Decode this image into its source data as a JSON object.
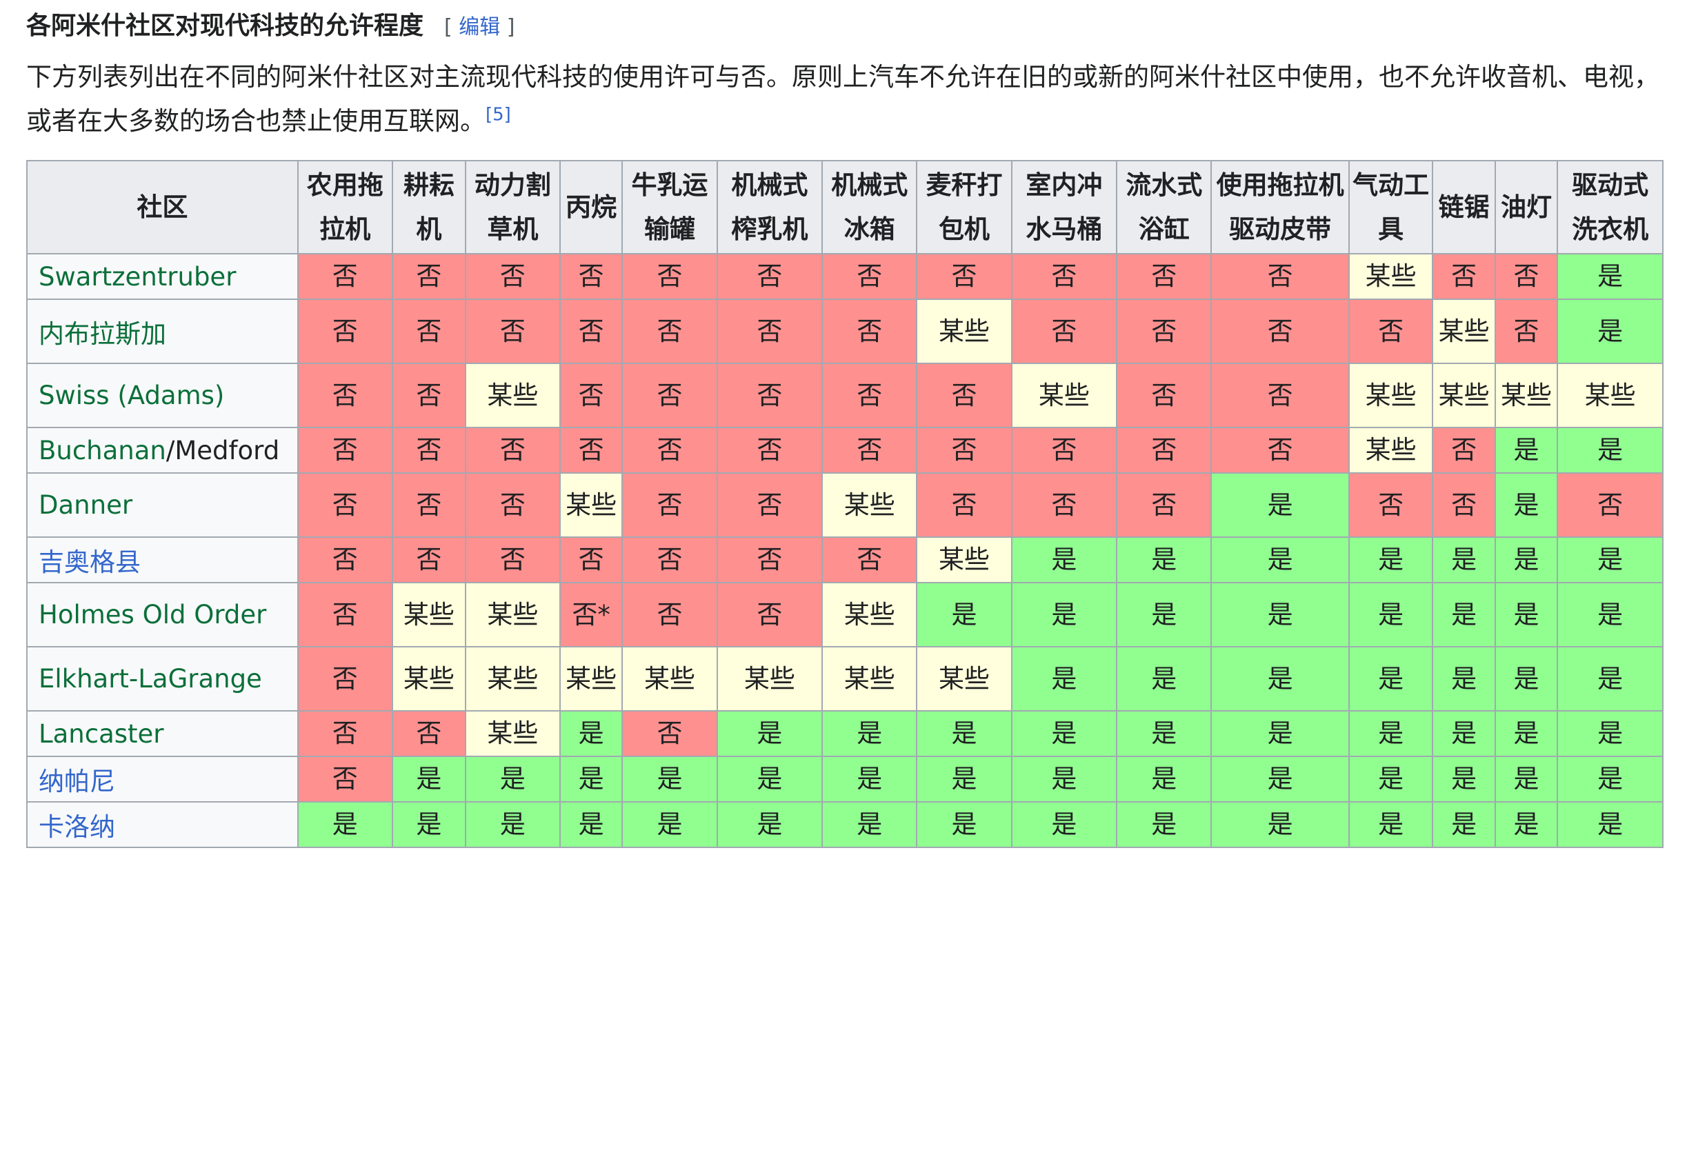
{
  "section": {
    "title": "各阿米什社区对现代科技的允许程度",
    "edit_open": "[ ",
    "edit_label": "编辑",
    "edit_close": " ]"
  },
  "intro": {
    "text": "下方列表列出在不同的阿米什社区对主流现代科技的使用许可与否。原则上汽车不允许在旧的或新的阿米什社区中使用，也不允许收音机、电视，或者在大多数的场合也禁止使用互联网。",
    "citation": "[5]"
  },
  "table": {
    "corner_header": "社区",
    "columns": [
      "农用拖拉机",
      "耕耘机",
      "动力割草机",
      "丙烷",
      "牛乳运输罐",
      "机械式榨乳机",
      "机械式冰箱",
      "麦秆打包机",
      "室内冲水马桶",
      "流水式浴缸",
      "使用拖拉机驱动皮带",
      "气动工具",
      "链锯",
      "油灯",
      "驱动式洗衣机"
    ],
    "rows": [
      {
        "name": [
          "Swartzentruber"
        ],
        "cells": [
          "否",
          "否",
          "否",
          "否",
          "否",
          "否",
          "否",
          "否",
          "否",
          "否",
          "否",
          "某些",
          "否",
          "否",
          "是"
        ]
      },
      {
        "name": [
          "内布拉斯加"
        ],
        "cells": [
          "否",
          "否",
          "否",
          "否",
          "否",
          "否",
          "否",
          "某些",
          "否",
          "否",
          "否",
          "否",
          "某些",
          "否",
          "是"
        ]
      },
      {
        "name": [
          "Swiss (Adams)"
        ],
        "cells": [
          "否",
          "否",
          "某些",
          "否",
          "否",
          "否",
          "否",
          "否",
          "某些",
          "否",
          "否",
          "某些",
          "某些",
          "某些",
          "某些"
        ]
      },
      {
        "name": [
          "Buchanan",
          "/",
          "Medford"
        ],
        "cells": [
          "否",
          "否",
          "否",
          "否",
          "否",
          "否",
          "否",
          "否",
          "否",
          "否",
          "否",
          "某些",
          "否",
          "是",
          "是"
        ]
      },
      {
        "name": [
          "Danner"
        ],
        "cells": [
          "否",
          "否",
          "否",
          "某些",
          "否",
          "否",
          "某些",
          "否",
          "否",
          "否",
          "是",
          "否",
          "否",
          "是",
          "否"
        ]
      },
      {
        "name": [
          "吉奥格县"
        ],
        "cells": [
          "否",
          "否",
          "否",
          "否",
          "否",
          "否",
          "否",
          "某些",
          "是",
          "是",
          "是",
          "是",
          "是",
          "是",
          "是"
        ]
      },
      {
        "name": [
          "Holmes Old Order"
        ],
        "cells": [
          "否",
          "某些",
          "某些",
          "否*",
          "否",
          "否",
          "某些",
          "是",
          "是",
          "是",
          "是",
          "是",
          "是",
          "是",
          "是"
        ]
      },
      {
        "name": [
          "Elkhart-LaGrange"
        ],
        "cells": [
          "否",
          "某些",
          "某些",
          "某些",
          "某些",
          "某些",
          "某些",
          "某些",
          "是",
          "是",
          "是",
          "是",
          "是",
          "是",
          "是"
        ]
      },
      {
        "name": [
          "Lancaster"
        ],
        "cells": [
          "否",
          "否",
          "某些",
          "是",
          "否",
          "是",
          "是",
          "是",
          "是",
          "是",
          "是",
          "是",
          "是",
          "是",
          "是"
        ]
      },
      {
        "name": [
          "纳帕尼"
        ],
        "cells": [
          "否",
          "是",
          "是",
          "是",
          "是",
          "是",
          "是",
          "是",
          "是",
          "是",
          "是",
          "是",
          "是",
          "是",
          "是"
        ]
      },
      {
        "name": [
          "卡洛纳"
        ],
        "cells": [
          "是",
          "是",
          "是",
          "是",
          "是",
          "是",
          "是",
          "是",
          "是",
          "是",
          "是",
          "是",
          "是",
          "是",
          "是"
        ]
      }
    ]
  },
  "colors": {
    "no": "#ff9090",
    "some": "#ffffdd",
    "yes": "#90ff90",
    "link_green": "#0b6f3a",
    "link_blue": "#3366cc"
  }
}
